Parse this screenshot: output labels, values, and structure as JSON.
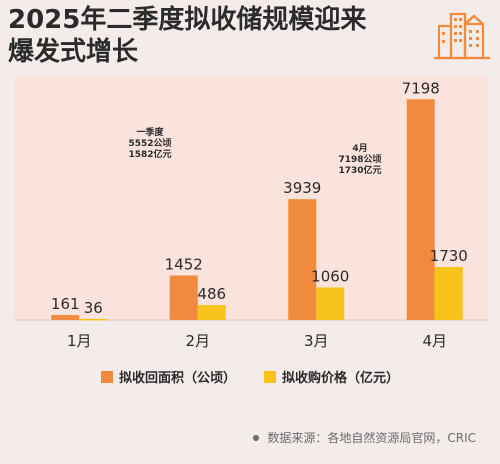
{
  "title_lines": [
    "2025年二季度拟收储规模迎来",
    "爆发式增长"
  ],
  "colors": {
    "area_bar": "#f08a3c",
    "price_bar": "#f7c21a",
    "plot_bg": "#fbe3dd",
    "logo": "#f08a3c"
  },
  "chart_data": {
    "type": "bar",
    "categories": [
      "1月",
      "2月",
      "3月",
      "4月"
    ],
    "series": [
      {
        "name": "拟收回面积（公顷）",
        "values": [
          161,
          1452,
          3939,
          7198
        ],
        "labels": [
          "161",
          "1452",
          "3939",
          "7198"
        ]
      },
      {
        "name": "拟收购价格（亿元）",
        "values": [
          36,
          486,
          1060,
          1730
        ],
        "labels": [
          "36",
          "486",
          "1060",
          "1730"
        ]
      }
    ],
    "ylim": [
      0,
      7500
    ],
    "legend_position": "bottom",
    "annotations": [
      {
        "text": "一季度\n5552公顷\n1582亿元",
        "category": "2月"
      },
      {
        "text": "4月\n7198公顷\n1730亿元",
        "category": "4月"
      }
    ]
  },
  "source": "数据来源：各地自然资源局官网，CRIC",
  "icons": {
    "logo": "buildings-icon",
    "source_marker": "dot-icon"
  }
}
